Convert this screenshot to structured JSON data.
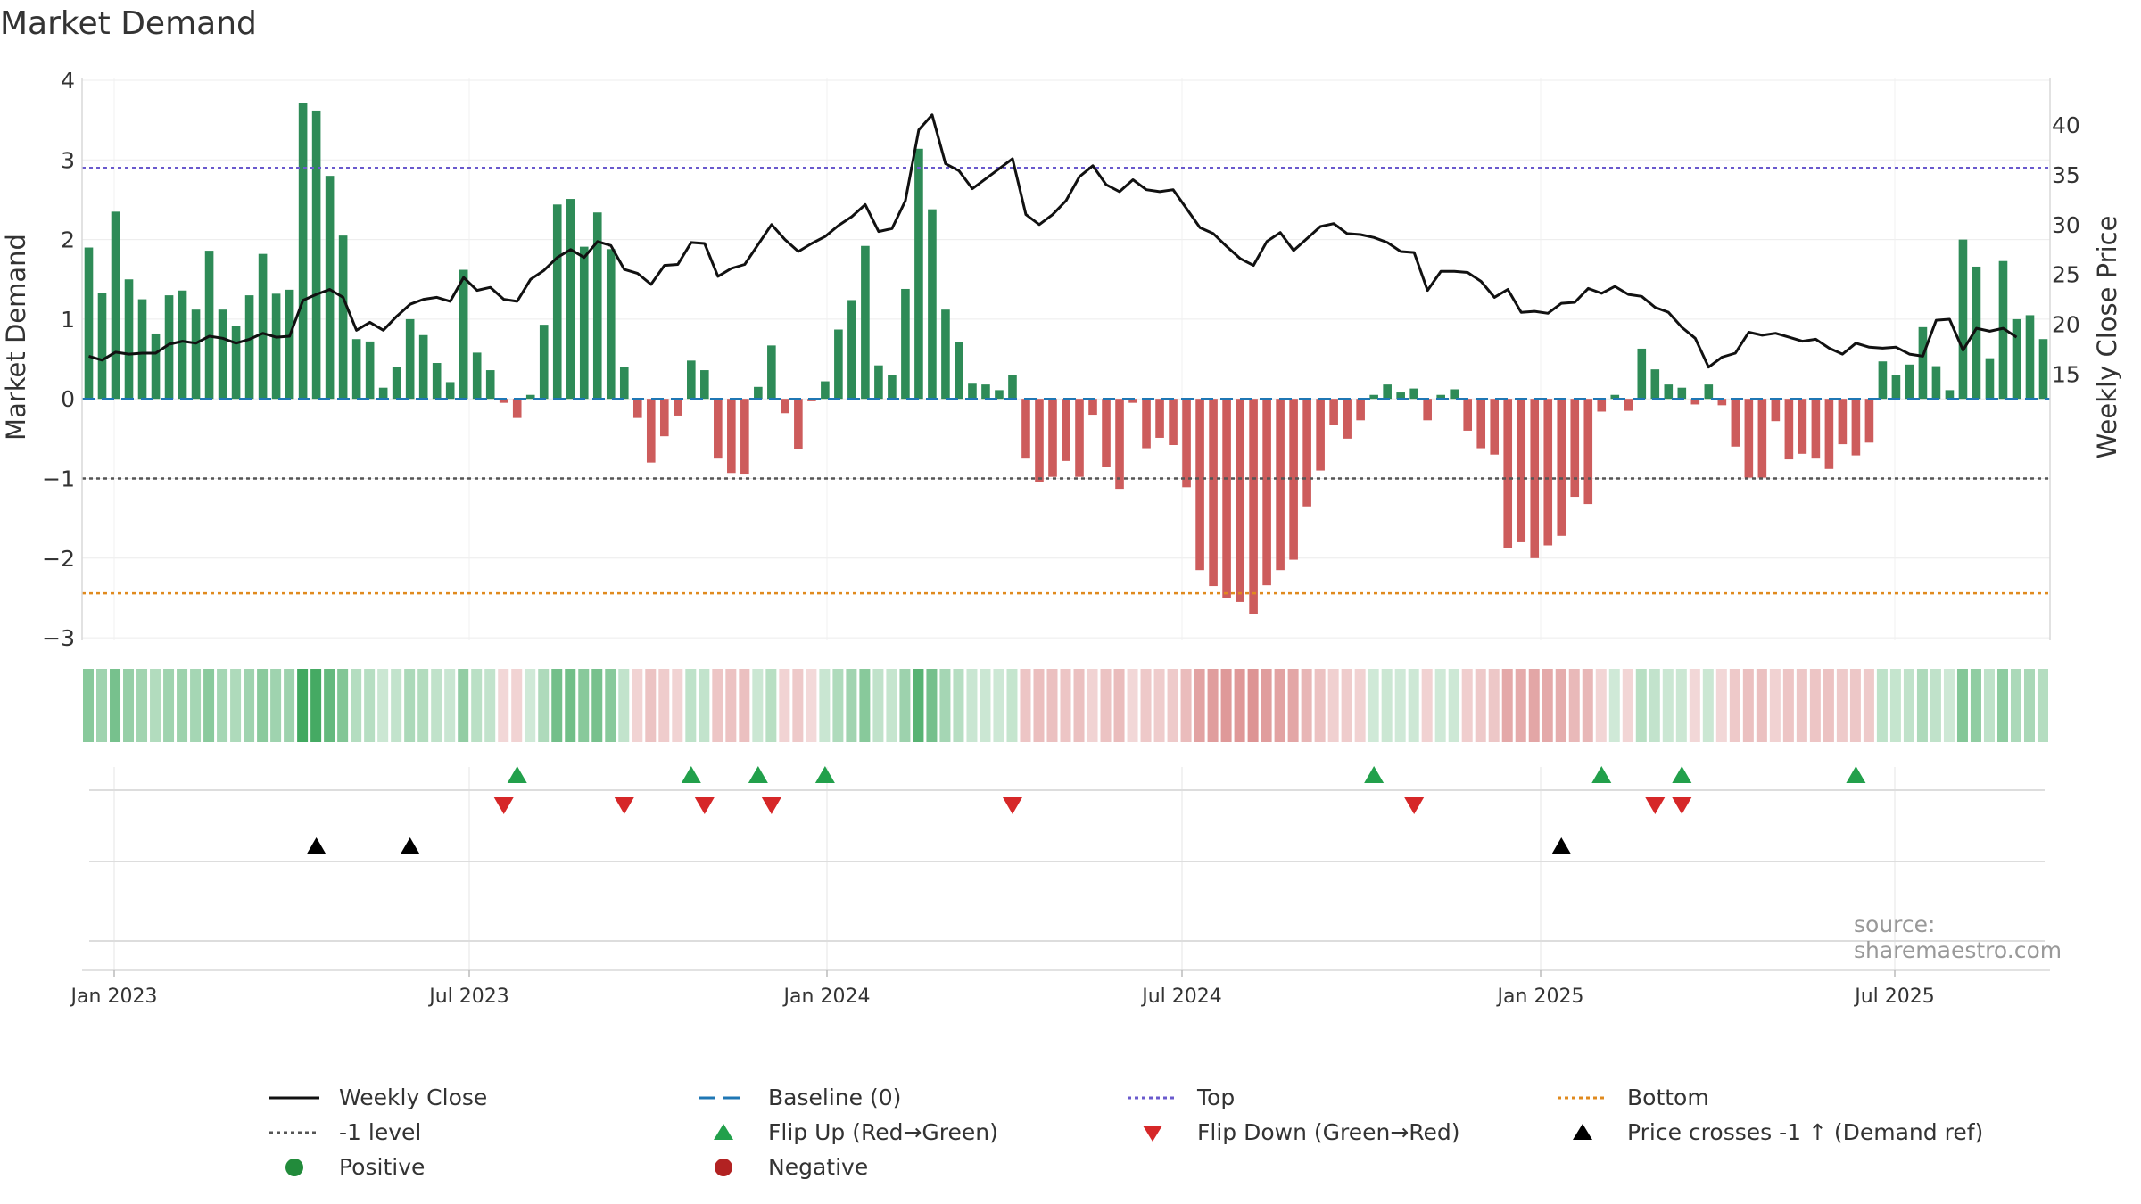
{
  "chart_data": {
    "type": "bar",
    "title": "Market Demand",
    "ylabel_left": "Market Demand",
    "ylabel_right": "Weekly Close Price",
    "source": "source: sharemaestro.com",
    "x_ticks": [
      "Jan 2023",
      "Jul 2023",
      "Jan 2024",
      "Jul 2024",
      "Jan 2025",
      "Jul 2025"
    ],
    "y_left_ticks": [
      4,
      3,
      2,
      1,
      0,
      -1,
      -2,
      -3
    ],
    "y_right_ticks": [
      40,
      35,
      30,
      25,
      20,
      15
    ],
    "ylim_left": [
      -3.2,
      4.0
    ],
    "ylim_right": [
      13.2,
      45
    ],
    "reference_lines": {
      "top": 2.9,
      "minus_one": -1.0,
      "bottom": -2.44,
      "baseline": 0
    },
    "colors": {
      "positive": "#2e8b57",
      "negative": "#cd5c5c",
      "price": "#111111",
      "top": "#6a5acd",
      "bottom": "#e08a1e",
      "baseline": "#1f77b4",
      "minus_one": "#555555",
      "flip_up": "#22a04b",
      "flip_down": "#d62728",
      "cross": "#000000"
    },
    "demand": [
      1.9,
      1.33,
      2.35,
      1.5,
      1.25,
      0.82,
      1.3,
      1.36,
      1.12,
      1.86,
      1.12,
      0.92,
      1.3,
      1.82,
      1.32,
      1.37,
      3.72,
      3.62,
      2.8,
      2.05,
      0.75,
      0.72,
      0.14,
      0.4,
      1.0,
      0.8,
      0.45,
      0.21,
      1.62,
      0.58,
      0.36,
      -0.05,
      -0.24,
      0.05,
      0.93,
      2.44,
      2.51,
      1.91,
      2.34,
      1.88,
      0.4,
      -0.24,
      -0.8,
      -0.47,
      -0.21,
      0.48,
      0.36,
      -0.75,
      -0.93,
      -0.95,
      0.15,
      0.67,
      -0.18,
      -0.63,
      -0.03,
      0.22,
      0.87,
      1.24,
      1.92,
      0.42,
      0.3,
      1.38,
      3.14,
      2.38,
      1.12,
      0.71,
      0.19,
      0.18,
      0.11,
      0.3,
      -0.75,
      -1.05,
      -0.98,
      -0.78,
      -0.98,
      -0.2,
      -0.86,
      -1.13,
      -0.05,
      -0.62,
      -0.49,
      -0.58,
      -1.11,
      -2.15,
      -2.35,
      -2.5,
      -2.55,
      -2.7,
      -2.34,
      -2.15,
      -2.02,
      -1.35,
      -0.9,
      -0.33,
      -0.5,
      -0.27,
      0.05,
      0.18,
      0.08,
      0.13,
      -0.27,
      0.05,
      0.12,
      -0.4,
      -0.62,
      -0.7,
      -1.87,
      -1.8,
      -2.0,
      -1.84,
      -1.72,
      -1.23,
      -1.32,
      -0.16,
      0.05,
      -0.15,
      0.63,
      0.37,
      0.18,
      0.14,
      -0.07,
      0.18,
      -0.08,
      -0.6,
      -0.99,
      -0.99,
      -0.28,
      -0.76,
      -0.69,
      -0.75,
      -0.88,
      -0.57,
      -0.71,
      -0.55,
      0.47,
      0.3,
      0.43,
      0.9,
      0.41,
      0.11,
      2.0,
      1.66,
      0.51,
      1.73,
      1.0,
      1.05,
      0.75
    ],
    "price": [
      16.8,
      16.4,
      17.2,
      17.0,
      17.1,
      17.1,
      18.0,
      18.3,
      18.1,
      18.8,
      18.6,
      18.1,
      18.5,
      19.1,
      18.7,
      18.8,
      22.4,
      23.0,
      23.5,
      22.7,
      19.4,
      20.2,
      19.4,
      20.8,
      22.0,
      22.5,
      22.7,
      22.3,
      24.7,
      23.4,
      23.7,
      22.5,
      22.3,
      24.5,
      25.4,
      26.7,
      27.5,
      26.7,
      28.3,
      27.9,
      25.5,
      25.1,
      24.0,
      25.9,
      26.0,
      28.2,
      28.1,
      24.8,
      25.6,
      26.0,
      28.0,
      30.0,
      28.5,
      27.3,
      28.1,
      28.8,
      29.9,
      30.8,
      32.0,
      29.3,
      29.6,
      32.4,
      39.5,
      41.0,
      36.1,
      35.4,
      33.6,
      34.6,
      35.6,
      36.6,
      31.0,
      30.0,
      31.0,
      32.4,
      34.8,
      35.9,
      34.0,
      33.3,
      34.5,
      33.5,
      33.3,
      33.5,
      31.6,
      29.7,
      29.1,
      27.8,
      26.6,
      25.9,
      28.3,
      29.2,
      27.4,
      28.6,
      29.8,
      30.1,
      29.1,
      29.0,
      28.7,
      28.2,
      27.3,
      27.2,
      23.4,
      25.3,
      25.3,
      25.2,
      24.3,
      22.7,
      23.5,
      21.2,
      21.3,
      21.1,
      22.1,
      22.2,
      23.6,
      23.1,
      23.8,
      23.0,
      22.8,
      21.7,
      21.2,
      19.7,
      18.6,
      15.7,
      16.7,
      17.1,
      19.2,
      18.9,
      19.1,
      18.7,
      18.3,
      18.5,
      17.6,
      17.0,
      18.1,
      17.7,
      17.6,
      17.7,
      17.0,
      16.8,
      20.4,
      20.5,
      17.4,
      19.6,
      19.3,
      19.6,
      18.7
    ],
    "flip_up": [
      32,
      45,
      50,
      55,
      96,
      113,
      119,
      132
    ],
    "flip_down": [
      31,
      40,
      46,
      51,
      69,
      99,
      117,
      119
    ],
    "price_cross_up": [
      17,
      24,
      110
    ]
  },
  "legend": [
    {
      "label": "Weekly Close",
      "symbol": "line-solid",
      "color": "#111111"
    },
    {
      "label": "Baseline (0)",
      "symbol": "line-dash",
      "color": "#1f77b4"
    },
    {
      "label": "Top",
      "symbol": "line-dot",
      "color": "#6a5acd"
    },
    {
      "label": "Bottom",
      "symbol": "line-dot",
      "color": "#e08a1e"
    },
    {
      "label": "-1 level",
      "symbol": "line-dot",
      "color": "#555555"
    },
    {
      "label": "Flip Up (Red→Green)",
      "symbol": "triangle-up",
      "color": "#22a04b"
    },
    {
      "label": "Flip Down (Green→Red)",
      "symbol": "triangle-down",
      "color": "#d62728"
    },
    {
      "label": "Price crosses -1 ↑ (Demand ref)",
      "symbol": "triangle-up",
      "color": "#000000"
    },
    {
      "label": "Positive",
      "symbol": "circle",
      "color": "#228b3b"
    },
    {
      "label": "Negative",
      "symbol": "circle",
      "color": "#b22222"
    }
  ]
}
